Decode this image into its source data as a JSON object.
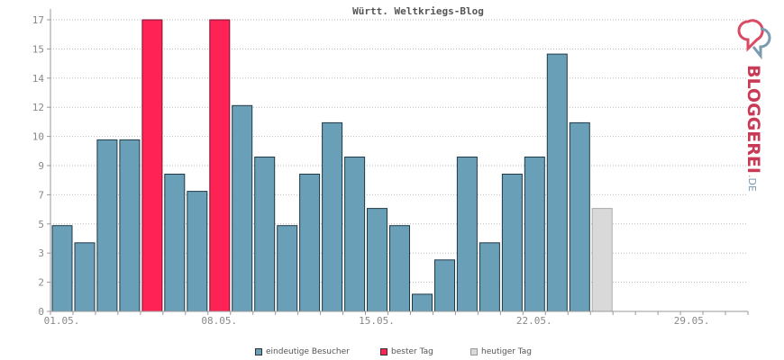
{
  "chart_data": {
    "type": "bar",
    "title": "Württ. Weltkriegs-Blog",
    "y_ticks": [
      "0",
      "2",
      "3",
      "5",
      "7",
      "9",
      "10",
      "12",
      "14",
      "15",
      "17"
    ],
    "x_ticks": [
      "01.05.",
      "08.05.",
      "15.05.",
      "22.05.",
      "29.05."
    ],
    "values": [
      5,
      4,
      10,
      10,
      17,
      8,
      7,
      17,
      12,
      9,
      5,
      8,
      11,
      9,
      6,
      5,
      1,
      3,
      9,
      4,
      8,
      9,
      15,
      11,
      6,
      0,
      0,
      0,
      0,
      0,
      0
    ],
    "best_days": [
      4,
      7
    ],
    "today_index": 24,
    "ylim": [
      0,
      17
    ],
    "grid": true,
    "legend_position": "bottom",
    "legend": [
      {
        "label": "eindeutige Besucher",
        "color": "#6a9fb8"
      },
      {
        "label": "bester Tag",
        "color": "#ff2255"
      },
      {
        "label": "heutiger Tag",
        "color": "#d9d9d9"
      }
    ],
    "colors": {
      "normal": "#6a9fb8",
      "best": "#ff2255",
      "today": "#d9d9d9"
    }
  },
  "logo": {
    "name": "BLOGGEREI",
    "suffix": ".DE"
  }
}
